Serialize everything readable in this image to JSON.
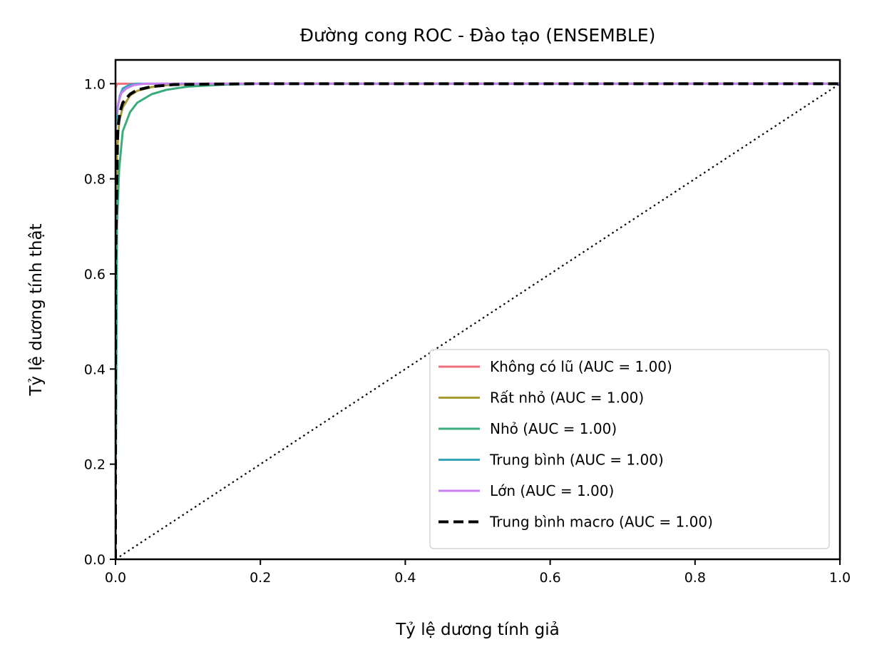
{
  "chart_data": {
    "type": "line",
    "title": "Đường cong ROC - Đào tạo (ENSEMBLE)",
    "xlabel": "Tỷ lệ dương tính giả",
    "ylabel": "Tỷ lệ dương tính thật",
    "xlim": [
      0.0,
      1.0
    ],
    "ylim": [
      0.0,
      1.05
    ],
    "xticks": [
      "0.0",
      "0.2",
      "0.4",
      "0.6",
      "0.8",
      "1.0"
    ],
    "yticks": [
      "0.0",
      "0.2",
      "0.4",
      "0.6",
      "0.8",
      "1.0"
    ],
    "grid": false,
    "legend_position": "lower-right",
    "series": [
      {
        "name": "Không có lũ (AUC = 1.00)",
        "color": "#f0717e",
        "style": "solid",
        "x": [
          0.0,
          0.0,
          0.002,
          1.0
        ],
        "y": [
          0.0,
          0.99,
          1.0,
          1.0
        ]
      },
      {
        "name": "Rất nhỏ (AUC = 1.00)",
        "color": "#a99a34",
        "style": "solid",
        "x": [
          0.0,
          0.002,
          0.005,
          0.01,
          0.02,
          0.03,
          0.05,
          0.07,
          0.1,
          0.15,
          1.0
        ],
        "y": [
          0.0,
          0.85,
          0.92,
          0.95,
          0.975,
          0.985,
          0.993,
          0.997,
          0.999,
          1.0,
          1.0
        ]
      },
      {
        "name": "Nhỏ (AUC = 1.00)",
        "color": "#3aac7a",
        "style": "solid",
        "x": [
          0.0,
          0.002,
          0.005,
          0.01,
          0.02,
          0.03,
          0.05,
          0.07,
          0.1,
          0.15,
          0.2,
          1.0
        ],
        "y": [
          0.0,
          0.7,
          0.82,
          0.9,
          0.94,
          0.96,
          0.978,
          0.987,
          0.994,
          0.998,
          1.0,
          1.0
        ]
      },
      {
        "name": "Trung bình (AUC = 1.00)",
        "color": "#39a4bc",
        "style": "solid",
        "x": [
          0.0,
          0.0,
          0.003,
          0.006,
          0.01,
          0.02,
          0.03,
          1.0
        ],
        "y": [
          0.0,
          0.9,
          0.95,
          0.975,
          0.99,
          0.998,
          1.0,
          1.0
        ]
      },
      {
        "name": "Lớn (AUC = 1.00)",
        "color": "#c87ff0",
        "style": "solid",
        "x": [
          0.0,
          0.0,
          0.004,
          0.008,
          0.015,
          0.025,
          0.04,
          1.0
        ],
        "y": [
          0.0,
          0.93,
          0.96,
          0.98,
          0.99,
          0.997,
          1.0,
          1.0
        ]
      },
      {
        "name": "Trung bình macro (AUC = 1.00)",
        "color": "#000000",
        "style": "dashed",
        "x": [
          0.0,
          0.0,
          0.003,
          0.006,
          0.01,
          0.02,
          0.03,
          0.05,
          0.08,
          0.12,
          0.2,
          1.0
        ],
        "y": [
          0.0,
          0.62,
          0.9,
          0.94,
          0.96,
          0.978,
          0.987,
          0.994,
          0.998,
          0.999,
          1.0,
          1.0
        ]
      }
    ],
    "reference_line": {
      "color": "#000000",
      "style": "dotted",
      "x": [
        0.0,
        1.0
      ],
      "y": [
        0.0,
        1.0
      ]
    }
  }
}
